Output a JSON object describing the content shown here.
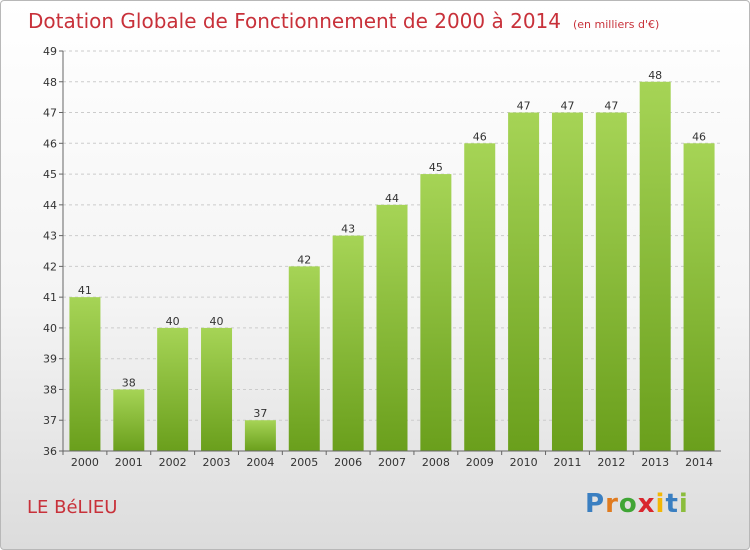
{
  "header": {
    "title": "Dotation Globale de Fonctionnement de 2000 à 2014",
    "subtitle": "(en milliers d'€)"
  },
  "footer": {
    "commune": "LE BéLIEU",
    "logo": {
      "text": "Proxiti",
      "letter_colors": [
        "#3a7fc1",
        "#e07b1f",
        "#3fa535",
        "#d9272e",
        "#f2b705",
        "#3a7fc1",
        "#8bbd3c"
      ]
    }
  },
  "colors": {
    "bar_top": "#a6d456",
    "bar_bottom": "#6a9f1c",
    "title": "#c8313a",
    "grid": "#cccccc"
  },
  "chart_data": {
    "type": "bar",
    "categories": [
      "2000",
      "2001",
      "2002",
      "2003",
      "2004",
      "2005",
      "2006",
      "2007",
      "2008",
      "2009",
      "2010",
      "2011",
      "2012",
      "2013",
      "2014"
    ],
    "values": [
      41,
      38,
      40,
      40,
      37,
      42,
      43,
      44,
      45,
      46,
      47,
      47,
      47,
      48,
      46
    ],
    "ylim": [
      36,
      49
    ],
    "yticks": [
      36,
      37,
      38,
      39,
      40,
      41,
      42,
      43,
      44,
      45,
      46,
      47,
      48,
      49
    ],
    "grid": "horizontal dashed",
    "data_labels": true
  }
}
